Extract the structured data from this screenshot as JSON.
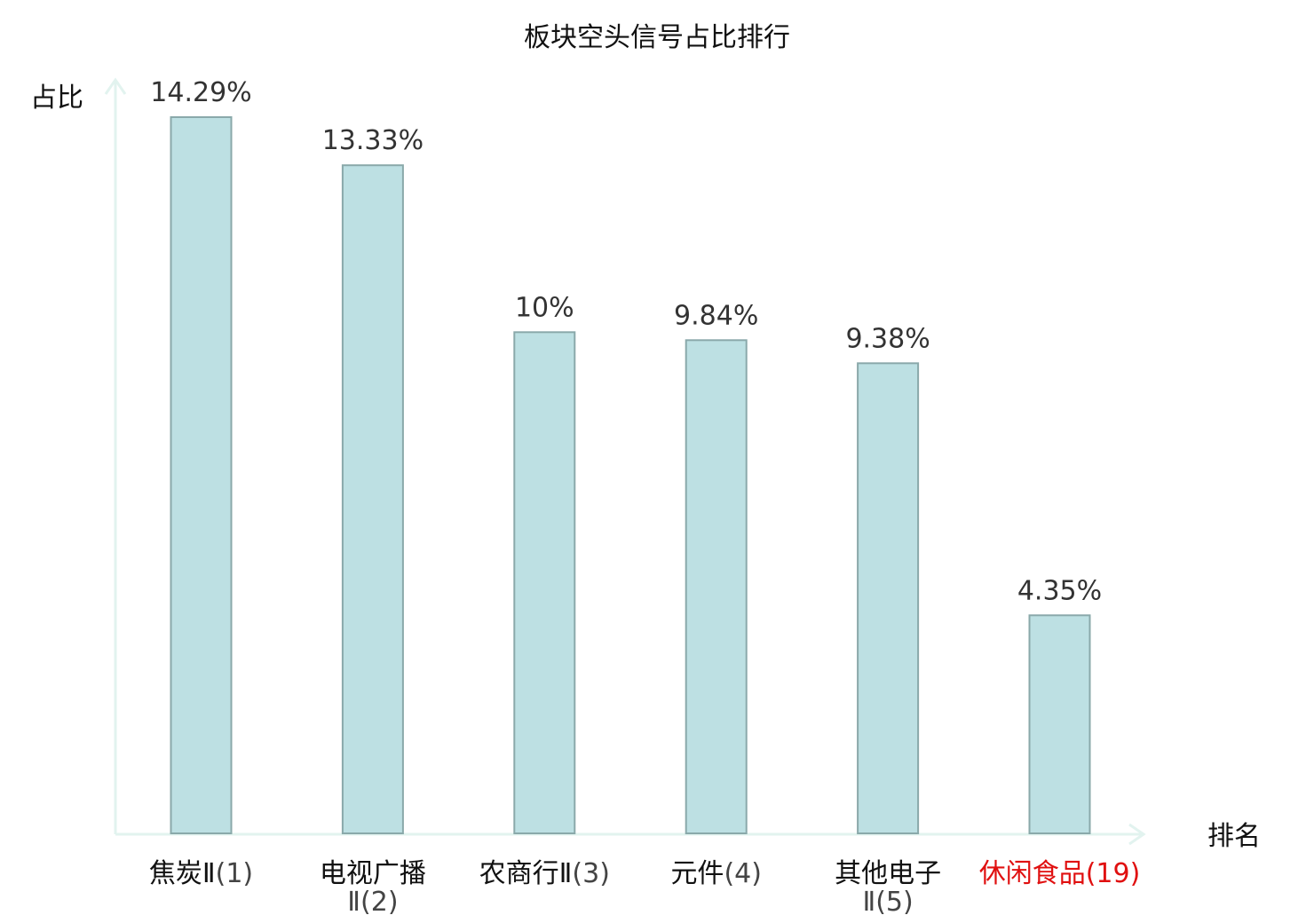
{
  "chart_data": {
    "type": "bar",
    "title": "板块空头信号占比排行",
    "ylabel": "占比",
    "xlabel": "排名",
    "ylim": [
      0,
      15
    ],
    "grid": false,
    "legend": "none",
    "categories": [
      {
        "name": "焦炭Ⅱ",
        "rank": "(1)",
        "wrap": false,
        "highlight": false
      },
      {
        "name": "电视广播",
        "rank": "Ⅱ(2)",
        "wrap": true,
        "highlight": false
      },
      {
        "name": "农商行Ⅱ",
        "rank": "(3)",
        "wrap": false,
        "highlight": false
      },
      {
        "name": "元件",
        "rank": "(4)",
        "wrap": false,
        "highlight": false
      },
      {
        "name": "其他电子",
        "rank": "Ⅱ(5)",
        "wrap": true,
        "highlight": false
      },
      {
        "name": "休闲食品",
        "rank": "(19)",
        "wrap": false,
        "highlight": true
      }
    ],
    "values": [
      14.29,
      13.33,
      10,
      9.84,
      9.38,
      4.35
    ],
    "value_labels": [
      "14.29%",
      "13.33%",
      "10%",
      "9.84%",
      "9.38%",
      "4.35%"
    ],
    "colors": {
      "bar_fill": "#bde0e3",
      "bar_stroke": "#8aa9aa",
      "axis": "#e2f3ef",
      "highlight": "#e01010"
    }
  }
}
